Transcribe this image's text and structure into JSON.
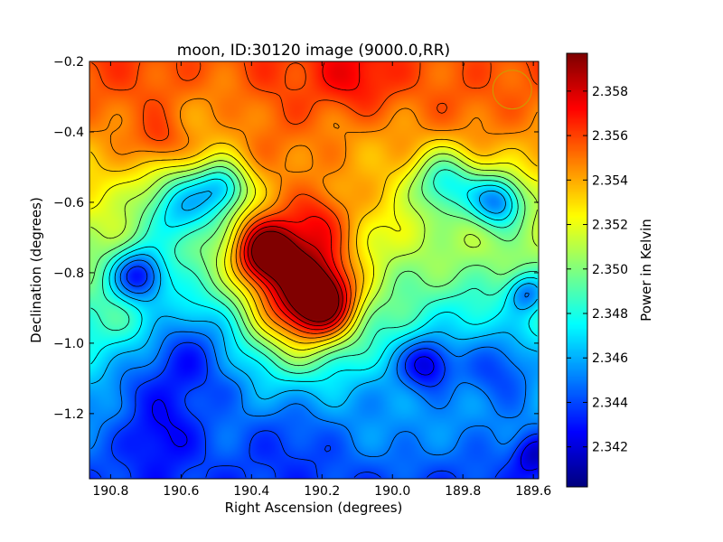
{
  "chart_data": {
    "type": "heatmap",
    "title": "moon, ID:30120 image (9000.0,RR)",
    "xlabel": "Right Ascension (degrees)",
    "ylabel": "Declination (degrees)",
    "colorbar_label": "Power in Kelvin",
    "colormap": "jet",
    "contours": true,
    "xlim": [
      190.86,
      189.585
    ],
    "ylim": [
      -1.385,
      -0.2
    ],
    "x_ticks": [
      190.8,
      190.6,
      190.4,
      190.2,
      190.0,
      189.8,
      189.6
    ],
    "x_tick_labels": [
      "190.8",
      "190.6",
      "190.4",
      "190.2",
      "190.0",
      "189.8",
      "189.6"
    ],
    "y_ticks": [
      -0.2,
      -0.4,
      -0.6,
      -0.8,
      -1.0,
      -1.2
    ],
    "y_tick_labels": [
      "−0.2",
      "−0.4",
      "−0.6",
      "−0.8",
      "−1.0",
      "−1.2"
    ],
    "clim": [
      2.3402,
      2.3597
    ],
    "colorbar_ticks": [
      2.342,
      2.344,
      2.346,
      2.348,
      2.35,
      2.352,
      2.354,
      2.356,
      2.358
    ],
    "colorbar_tick_labels": [
      "2.342",
      "2.344",
      "2.346",
      "2.348",
      "2.350",
      "2.352",
      "2.354",
      "2.356",
      "2.358"
    ],
    "beam_marker": {
      "ra": 189.66,
      "dec": -0.28,
      "radius_deg": 0.055,
      "color": "#c8a000"
    },
    "features": [
      {
        "ra": 190.25,
        "dec": -0.22,
        "value": 2.3565,
        "width": 0.35
      },
      {
        "ra": 190.1,
        "dec": -0.24,
        "value": 2.3585,
        "width": 0.12
      },
      {
        "ra": 190.6,
        "dec": -0.22,
        "value": 2.3558,
        "width": 0.25
      },
      {
        "ra": 189.8,
        "dec": -0.22,
        "value": 2.3555,
        "width": 0.22
      },
      {
        "ra": 190.66,
        "dec": -0.42,
        "value": 2.3558,
        "width": 0.07
      },
      {
        "ra": 190.5,
        "dec": -0.4,
        "value": 2.3525,
        "width": 0.15
      },
      {
        "ra": 190.1,
        "dec": -0.4,
        "value": 2.3525,
        "width": 0.18
      },
      {
        "ra": 190.2,
        "dec": -0.62,
        "value": 2.3535,
        "width": 0.08
      },
      {
        "ra": 190.36,
        "dec": -0.74,
        "value": 2.3585,
        "width": 0.09
      },
      {
        "ra": 190.25,
        "dec": -0.74,
        "value": 2.3565,
        "width": 0.16
      },
      {
        "ra": 190.2,
        "dec": -0.88,
        "value": 2.3575,
        "width": 0.1
      },
      {
        "ra": 190.28,
        "dec": -0.9,
        "value": 2.3545,
        "width": 0.16
      },
      {
        "ra": 190.72,
        "dec": -0.92,
        "value": 2.3505,
        "width": 0.12
      },
      {
        "ra": 190.6,
        "dec": -0.62,
        "value": 2.3455,
        "width": 0.12
      },
      {
        "ra": 190.48,
        "dec": -0.56,
        "value": 2.3462,
        "width": 0.08
      },
      {
        "ra": 190.72,
        "dec": -0.81,
        "value": 2.3425,
        "width": 0.08
      },
      {
        "ra": 189.7,
        "dec": -0.6,
        "value": 2.3445,
        "width": 0.08
      },
      {
        "ra": 189.85,
        "dec": -0.55,
        "value": 2.3465,
        "width": 0.1
      },
      {
        "ra": 189.62,
        "dec": -0.86,
        "value": 2.3445,
        "width": 0.06
      },
      {
        "ra": 190.6,
        "dec": -1.05,
        "value": 2.3425,
        "width": 0.18
      },
      {
        "ra": 189.9,
        "dec": -1.06,
        "value": 2.3418,
        "width": 0.08
      },
      {
        "ra": 189.7,
        "dec": -1.08,
        "value": 2.3435,
        "width": 0.12
      },
      {
        "ra": 190.66,
        "dec": -1.28,
        "value": 2.3425,
        "width": 0.12
      },
      {
        "ra": 190.3,
        "dec": -1.32,
        "value": 2.3435,
        "width": 0.15
      },
      {
        "ra": 189.6,
        "dec": -1.32,
        "value": 2.3412,
        "width": 0.06
      },
      {
        "ra": 190.75,
        "dec": -1.15,
        "value": 2.3455,
        "width": 0.06
      },
      {
        "ra": 190.45,
        "dec": -1.15,
        "value": 2.346,
        "width": 0.05
      },
      {
        "ra": 190.0,
        "dec": -1.2,
        "value": 2.3455,
        "width": 0.14
      },
      {
        "ra": 189.8,
        "dec": -0.95,
        "value": 2.3475,
        "width": 0.1
      }
    ]
  }
}
